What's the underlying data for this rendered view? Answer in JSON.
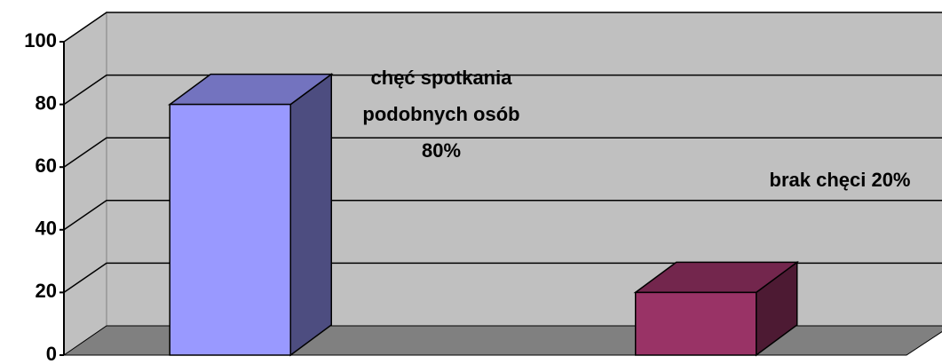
{
  "chart_data": {
    "type": "bar3d",
    "categories": [
      null,
      null
    ],
    "values": [
      80,
      20
    ],
    "value_labels": [
      "chęć spotkania podobnych osób 80%",
      "brak chęci 20%"
    ],
    "colors": [
      "#9999ff",
      "#993366"
    ],
    "ylim": [
      0,
      100
    ],
    "yticks": [
      0,
      20,
      40,
      60,
      80,
      100
    ],
    "grid": true
  }
}
